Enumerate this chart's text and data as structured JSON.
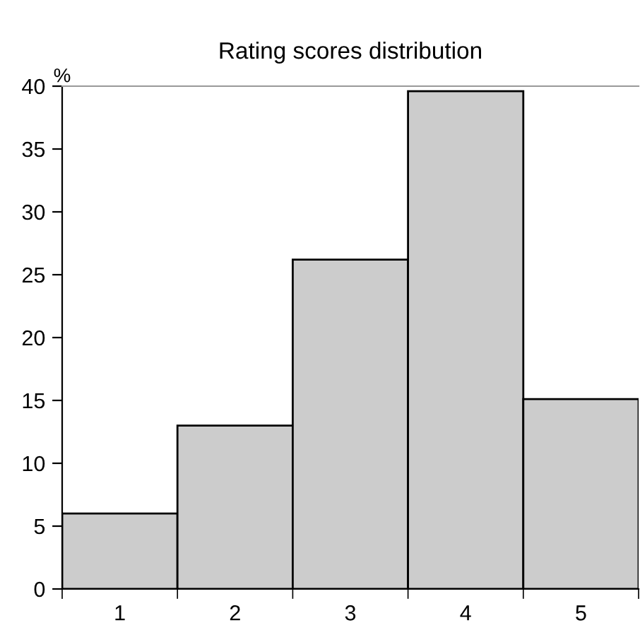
{
  "chart_data": {
    "type": "bar",
    "title": "Rating scores distribution",
    "ylabel": "%",
    "categories": [
      "1",
      "2",
      "3",
      "4",
      "5"
    ],
    "values": [
      6.0,
      13.0,
      26.2,
      39.6,
      15.1
    ],
    "color": "#cccccc",
    "ylim": [
      0,
      40
    ],
    "yticks": [
      0,
      5,
      10,
      15,
      20,
      25,
      30,
      35,
      40
    ],
    "grid": false
  }
}
